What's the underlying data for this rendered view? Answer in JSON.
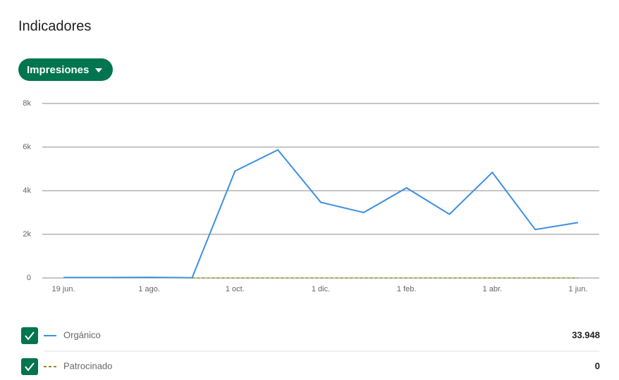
{
  "header": {
    "title": "Indicadores",
    "dropdown": "Impresiones"
  },
  "chart_data": {
    "type": "line",
    "categories": [
      "19 jun.",
      null,
      "1 ago.",
      null,
      "1 oct.",
      null,
      "1 dic.",
      null,
      "1 feb.",
      null,
      "1 abr.",
      null,
      "1 jun."
    ],
    "series": [
      {
        "name": "Orgánico",
        "color": "#3d8fe0",
        "dashed": false,
        "values": [
          20,
          20,
          30,
          10,
          4900,
          5870,
          3470,
          3000,
          4130,
          2920,
          4840,
          2220,
          2540
        ]
      },
      {
        "name": "Patrocinado",
        "color": "#8a8a1e",
        "dashed": true,
        "values": [
          null,
          null,
          null,
          0,
          0,
          0,
          0,
          0,
          0,
          0,
          0,
          0,
          0
        ]
      }
    ],
    "ylim": [
      0,
      8000
    ],
    "yticks": [
      0,
      {
        "value": 2000,
        "label": "2k"
      },
      {
        "value": 4000,
        "label": "4k"
      },
      {
        "value": 6000,
        "label": "6k"
      },
      {
        "value": 8000,
        "label": "8k"
      }
    ],
    "grid": true
  },
  "totals": [
    {
      "value": 33948,
      "label": "33.948"
    },
    0
  ]
}
